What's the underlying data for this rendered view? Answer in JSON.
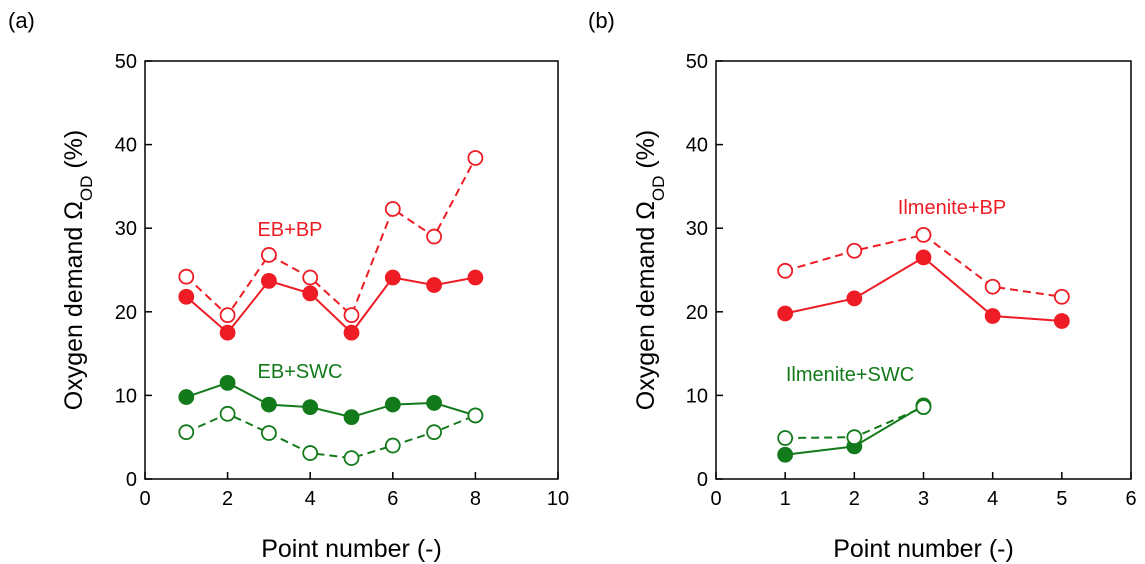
{
  "chart_data": [
    {
      "type": "line",
      "panel_label": "(a)",
      "xlabel": "Point number (-)",
      "ylabel_parts": [
        "Oxygen demand Ω",
        "OD",
        " (%)"
      ],
      "xlim": [
        0,
        10
      ],
      "xticks": [
        0,
        2,
        4,
        6,
        8,
        10
      ],
      "ylim": [
        0,
        50
      ],
      "yticks": [
        0,
        10,
        20,
        30,
        40,
        50
      ],
      "series": [
        {
          "color": "#ee1c24",
          "marker": "open",
          "linestyle": "dashed",
          "x": [
            1,
            2,
            3,
            4,
            5,
            6,
            7,
            8
          ],
          "values": [
            24.2,
            19.6,
            26.8,
            24.1,
            19.6,
            32.3,
            29.0,
            38.4
          ]
        },
        {
          "color": "#ee1c24",
          "marker": "filled",
          "linestyle": "solid",
          "x": [
            1,
            2,
            3,
            4,
            5,
            6,
            7,
            8
          ],
          "values": [
            21.8,
            17.5,
            23.7,
            22.2,
            17.5,
            24.1,
            23.2,
            24.1
          ]
        },
        {
          "color": "#137a1b",
          "marker": "filled",
          "linestyle": "solid",
          "x": [
            1,
            2,
            3,
            4,
            5,
            6,
            7,
            8
          ],
          "values": [
            9.8,
            11.5,
            8.9,
            8.6,
            7.4,
            8.9,
            9.1,
            7.6
          ]
        },
        {
          "color": "#137a1b",
          "marker": "open",
          "linestyle": "dashed",
          "x": [
            1,
            2,
            3,
            4,
            5,
            6,
            7,
            8
          ],
          "values": [
            5.6,
            7.8,
            5.5,
            3.1,
            2.5,
            4.0,
            5.6,
            7.6
          ]
        }
      ],
      "annotations": [
        {
          "text": "EB+BP",
          "color": "#ee1c24"
        },
        {
          "text": "EB+SWC",
          "color": "#137a1b"
        }
      ]
    },
    {
      "type": "line",
      "panel_label": "(b)",
      "xlabel": "Point number (-)",
      "ylabel_parts": [
        "Oxygen demand Ω",
        "OD",
        " (%)"
      ],
      "xlim": [
        0,
        6
      ],
      "xticks": [
        0,
        1,
        2,
        3,
        4,
        5,
        6
      ],
      "ylim": [
        0,
        50
      ],
      "yticks": [
        0,
        10,
        20,
        30,
        40,
        50
      ],
      "series": [
        {
          "color": "#ee1c24",
          "marker": "open",
          "linestyle": "dashed",
          "x": [
            1,
            2,
            3,
            4,
            5
          ],
          "values": [
            24.9,
            27.3,
            29.2,
            23.0,
            21.8
          ]
        },
        {
          "color": "#ee1c24",
          "marker": "filled",
          "linestyle": "solid",
          "x": [
            1,
            2,
            3,
            4,
            5
          ],
          "values": [
            19.8,
            21.6,
            26.5,
            19.5,
            18.9
          ]
        },
        {
          "color": "#137a1b",
          "marker": "filled",
          "linestyle": "solid",
          "x": [
            1,
            2,
            3
          ],
          "values": [
            2.9,
            3.9,
            8.8
          ]
        },
        {
          "color": "#137a1b",
          "marker": "open",
          "linestyle": "dashed",
          "x": [
            1,
            2,
            3
          ],
          "values": [
            4.9,
            5.0,
            8.6
          ]
        }
      ],
      "annotations": [
        {
          "text": "Ilmenite+BP",
          "color": "#ee1c24"
        },
        {
          "text": "Ilmenite+SWC",
          "color": "#137a1b"
        }
      ]
    }
  ]
}
